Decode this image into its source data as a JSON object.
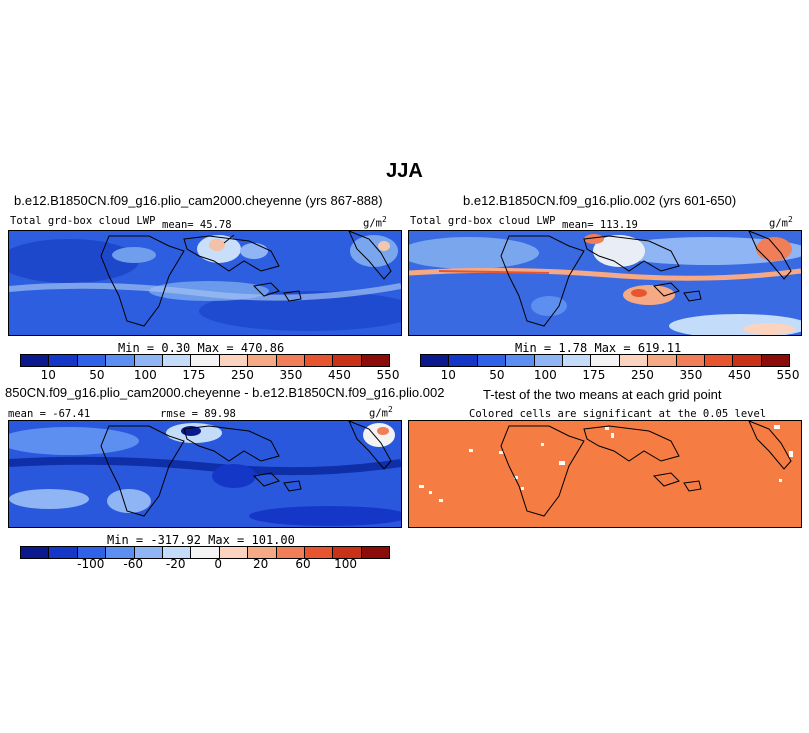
{
  "figure": {
    "title": "JJA"
  },
  "panels": {
    "a": {
      "title": "b.e12.B1850CN.f09_g16.plio_cam2000.cheyenne (yrs 867-888)",
      "variable": "Total grd-box cloud LWP",
      "mean": "mean=  45.78",
      "units": "g/m",
      "units_exp": "2",
      "minmax": "Min =   0.30  Max = 470.86"
    },
    "b": {
      "title": "b.e12.B1850CN.f09_g16.plio.002 (yrs 601-650)",
      "variable": "Total grd-box cloud LWP",
      "mean": "mean= 113.19",
      "units": "g/m",
      "units_exp": "2",
      "minmax": "Min =   1.78  Max = 619.11"
    },
    "c": {
      "title": "850CN.f09_g16.plio_cam2000.cheyenne - b.e12.B1850CN.f09_g16.plio.002",
      "mean": "mean = -67.41",
      "rmse": "rmse =  89.98",
      "units": "g/m",
      "units_exp": "2",
      "minmax": "Min = -317.92 Max = 101.00"
    },
    "d": {
      "title": "T-test of the two means at each grid point",
      "subtitle": "Colored cells are significant at the 0.05 level"
    }
  },
  "colorbars": {
    "lwp": {
      "colors": [
        "#0a1a8c",
        "#1437c8",
        "#2f62e6",
        "#5d8ff0",
        "#8fb5f5",
        "#c2dcfa",
        "#f3f3f3",
        "#fad4bf",
        "#f6a985",
        "#f07e58",
        "#e6552f",
        "#c83218",
        "#8c0c0c"
      ],
      "ticks": [
        "10",
        "50",
        "100",
        "175",
        "250",
        "350",
        "450",
        "550"
      ]
    },
    "diff": {
      "colors": [
        "#0a1a8c",
        "#1437c8",
        "#2f62e6",
        "#5d8ff0",
        "#8fb5f5",
        "#c2dcfa",
        "#f3f3f3",
        "#fad4bf",
        "#f6a985",
        "#f07e58",
        "#e6552f",
        "#c83218",
        "#8c0c0c"
      ],
      "ticks": [
        "-100",
        "-60",
        "-20",
        "0",
        "20",
        "60",
        "100"
      ]
    }
  },
  "colors": {
    "map_base_low": "#2f5fe0",
    "map_base_high": "#5b8ee8",
    "significant": "#f57c43"
  }
}
